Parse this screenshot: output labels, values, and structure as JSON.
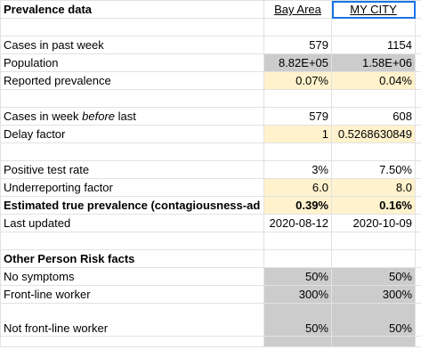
{
  "sheet": {
    "rows": [
      [
        "Prevalence data",
        "Bay Area",
        "MY CITY"
      ],
      [
        "Cases in past week",
        "579",
        "1154"
      ],
      [
        "Population",
        "8.82E+05",
        "1.58E+06"
      ],
      [
        "Reported prevalence",
        "0.07%",
        "0.04%"
      ],
      [
        [
          "Cases in week ",
          "before",
          " last"
        ],
        "579",
        "608"
      ],
      [
        "Delay factor",
        "1",
        "0.5268630849"
      ],
      [
        "Positive test rate",
        "3%",
        "7.50%"
      ],
      [
        "Underreporting factor",
        "6.0",
        "8.0"
      ],
      [
        "Estimated true prevalence (contagiousness-ad",
        "0.39%",
        "0.16%"
      ],
      [
        "Last updated",
        "2020-08-12",
        "2020-10-09"
      ],
      [
        "Other Person Risk facts"
      ],
      [
        "No symptoms",
        "50%",
        "50%"
      ],
      [
        "Front-line worker",
        "300%",
        "300%"
      ],
      [
        "Not front-line worker",
        "50%",
        "50%"
      ]
    ]
  }
}
